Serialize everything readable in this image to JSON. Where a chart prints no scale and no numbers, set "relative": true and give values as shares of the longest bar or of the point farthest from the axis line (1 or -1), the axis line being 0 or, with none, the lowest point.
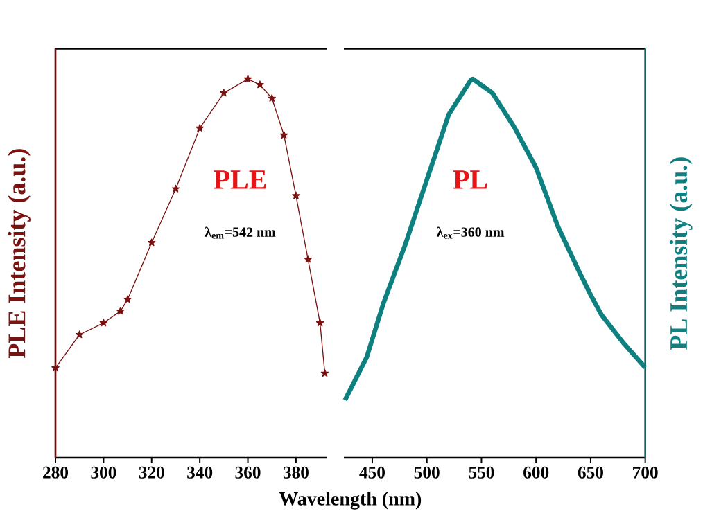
{
  "chart_data": [
    {
      "type": "line",
      "xlabel": "Wavelength (nm)",
      "ylabel": "PLE Intensity (a.u.)",
      "relative": true,
      "xlim": [
        280,
        393
      ],
      "xticks": [
        280,
        300,
        320,
        340,
        360,
        380
      ],
      "tick_labels": "x",
      "marker": "star",
      "annotations": [
        "PLE",
        "λ$_{em}$=542 nm"
      ],
      "series": [
        {
          "color": "#7a1212",
          "x": [
            280,
            290,
            300,
            307,
            310,
            320,
            330,
            340,
            350,
            360,
            365,
            370,
            375,
            380,
            385,
            390,
            392
          ],
          "values": [
            0.237,
            0.325,
            0.356,
            0.387,
            0.418,
            0.568,
            0.71,
            0.87,
            0.963,
            1.0,
            0.985,
            0.949,
            0.852,
            0.692,
            0.524,
            0.356,
            0.223
          ]
        }
      ]
    },
    {
      "type": "line",
      "ylabel": "PL Intensity (a.u.)",
      "relative": true,
      "xlim": [
        424,
        700
      ],
      "xticks": [
        450,
        500,
        550,
        600,
        650,
        700
      ],
      "tick_labels": "x",
      "annotations": [
        "PL",
        "λ$_{ex}$=360 nm"
      ],
      "series": [
        {
          "color": "#0e8080",
          "x": [
            425,
            445,
            460,
            480,
            500,
            520,
            540,
            542,
            560,
            580,
            600,
            620,
            640,
            650,
            660,
            680,
            700
          ],
          "values": [
            0.152,
            0.266,
            0.406,
            0.561,
            0.734,
            0.906,
            0.996,
            1.0,
            0.963,
            0.873,
            0.766,
            0.611,
            0.488,
            0.43,
            0.377,
            0.303,
            0.238
          ]
        }
      ]
    }
  ]
}
